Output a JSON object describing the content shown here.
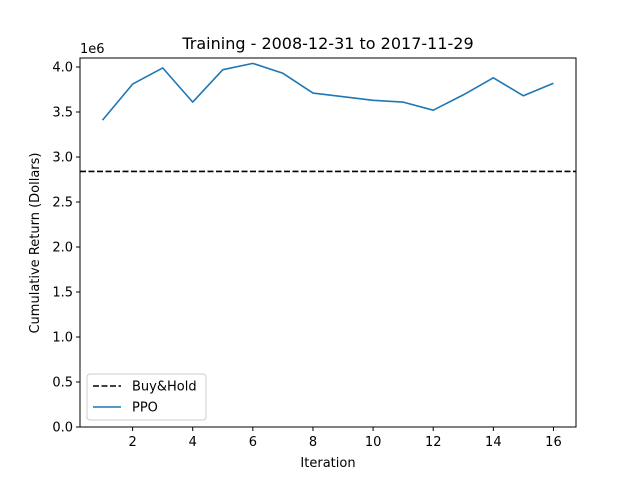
{
  "chart_data": {
    "type": "line",
    "title": "Training - 2008-12-31 to 2017-11-29",
    "xlabel": "Iteration",
    "ylabel": "Cumulative Return (Dollars)",
    "y_offset_label": "1e6",
    "xlim": [
      0.25,
      16.75
    ],
    "ylim": [
      0,
      4.1
    ],
    "xticks": [
      2,
      4,
      6,
      8,
      10,
      12,
      14,
      16
    ],
    "yticks": [
      0.0,
      0.5,
      1.0,
      1.5,
      2.0,
      2.5,
      3.0,
      3.5,
      4.0
    ],
    "ytick_labels": [
      "0.0",
      "0.5",
      "1.0",
      "1.5",
      "2.0",
      "2.5",
      "3.0",
      "3.5",
      "4.0"
    ],
    "grid": false,
    "legend_position": "lower-left",
    "series": [
      {
        "name": "Buy&Hold",
        "style": "dashed",
        "color": "#000000",
        "x": [
          0.25,
          16.75
        ],
        "values": [
          2.84,
          2.84
        ]
      },
      {
        "name": "PPO",
        "style": "solid",
        "color": "#1f77b4",
        "x": [
          1,
          2,
          3,
          4,
          5,
          6,
          7,
          8,
          9,
          10,
          11,
          12,
          13,
          14,
          15,
          16
        ],
        "values": [
          3.41,
          3.81,
          3.99,
          3.61,
          3.97,
          4.04,
          3.93,
          3.71,
          3.67,
          3.63,
          3.61,
          3.52,
          3.69,
          3.88,
          3.68,
          3.82
        ]
      }
    ]
  }
}
